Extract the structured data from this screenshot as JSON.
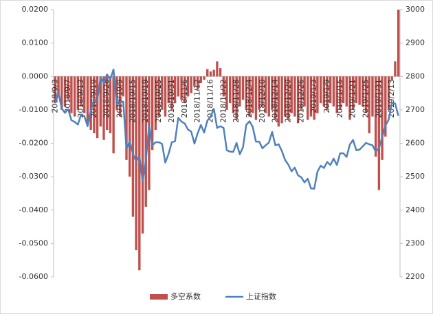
{
  "chart_data": {
    "type": "bar",
    "categories": [
      "2018/9/3",
      null,
      null,
      null,
      "2018/9/7",
      null,
      null,
      null,
      "2018/9/13",
      null,
      null,
      null,
      "2018/9/19",
      null,
      null,
      null,
      "2018/9/26",
      null,
      null,
      null,
      "2018/10/9",
      null,
      null,
      null,
      "2018/10/15",
      null,
      null,
      null,
      "2018/10/19",
      null,
      null,
      null,
      "2018/10/25",
      null,
      null,
      null,
      "2018/10/31",
      null,
      null,
      null,
      "2018/11/6",
      null,
      null,
      null,
      "2018/11/12",
      null,
      null,
      null,
      "2018/11/16",
      null,
      null,
      null,
      "2018/11/22",
      null,
      null,
      null,
      "2018/11/28",
      null,
      null,
      null,
      "2018/12/4",
      null,
      null,
      null,
      "2018/12/10",
      null,
      null,
      null,
      "2018/12/14",
      null,
      null,
      null,
      "2018/12/20",
      null,
      null,
      null,
      "2018/12/26",
      null,
      null,
      null,
      "2019/1/3",
      null,
      null,
      null,
      "2019/1/9",
      null,
      null,
      null,
      "2019/1/15",
      null,
      null,
      null,
      "2019/1/21",
      null,
      null,
      null,
      "2019/1/25",
      null,
      null,
      null,
      "2019/1/31",
      null,
      null,
      null,
      "2019/2/13",
      null,
      null
    ],
    "series": [
      {
        "name": "多空系数",
        "type": "bar",
        "color": "#c0504d",
        "values": [
          -0.008,
          -0.006,
          -0.01,
          -0.009,
          -0.007,
          -0.011,
          -0.012,
          -0.01,
          -0.009,
          -0.011,
          -0.014,
          -0.016,
          -0.017,
          -0.0185,
          -0.015,
          -0.019,
          -0.016,
          -0.017,
          -0.023,
          -0.01,
          -0.012,
          -0.006,
          -0.025,
          -0.03,
          -0.042,
          -0.052,
          -0.058,
          -0.047,
          -0.039,
          -0.034,
          -0.022,
          -0.016,
          -0.012,
          -0.01,
          -0.012,
          -0.008,
          -0.01,
          -0.008,
          -0.006,
          -0.007,
          -0.008,
          -0.006,
          -0.005,
          -0.003,
          -0.004,
          -0.002,
          -0.001,
          0.0022,
          0.0015,
          0.002,
          0.0045,
          0.0025,
          -0.006,
          -0.01,
          -0.008,
          -0.011,
          -0.013,
          -0.009,
          -0.007,
          -0.01,
          -0.012,
          -0.011,
          -0.013,
          -0.01,
          -0.009,
          -0.011,
          -0.012,
          -0.01,
          -0.013,
          -0.015,
          -0.014,
          -0.012,
          -0.013,
          -0.011,
          -0.012,
          -0.014,
          -0.01,
          -0.009,
          -0.013,
          -0.012,
          -0.013,
          -0.011,
          -0.008,
          -0.009,
          -0.01,
          -0.008,
          -0.009,
          -0.011,
          -0.01,
          -0.008,
          -0.009,
          -0.013,
          -0.01,
          -0.008,
          -0.0085,
          -0.009,
          -0.011,
          -0.017,
          -0.012,
          -0.024,
          -0.034,
          -0.025,
          -0.018,
          -0.01,
          -0.001,
          0.0045,
          0.02
        ]
      },
      {
        "name": "上证指数",
        "type": "line",
        "axis": "y2",
        "color": "#4f81bd",
        "values": [
          2720,
          2750,
          2704,
          2691,
          2702,
          2669,
          2664,
          2656,
          2686,
          2681,
          2651,
          2699,
          2730,
          2729,
          2797,
          2781,
          2806,
          2791,
          2821,
          2716,
          2721,
          2725,
          2583,
          2606,
          2568,
          2546,
          2561,
          2486,
          2550,
          2654,
          2594,
          2603,
          2603,
          2598,
          2542,
          2568,
          2603,
          2606,
          2676,
          2665,
          2659,
          2641,
          2635,
          2599,
          2630,
          2655,
          2632,
          2668,
          2679,
          2703,
          2646,
          2651,
          2646,
          2579,
          2575,
          2574,
          2601,
          2567,
          2588,
          2655,
          2666,
          2649,
          2605,
          2605,
          2585,
          2594,
          2602,
          2634,
          2594,
          2597,
          2577,
          2550,
          2536,
          2516,
          2527,
          2504,
          2498,
          2483,
          2494,
          2465,
          2464,
          2515,
          2533,
          2526,
          2544,
          2535,
          2554,
          2535,
          2570,
          2570,
          2559,
          2596,
          2610,
          2579,
          2581,
          2591,
          2601,
          2597,
          2594,
          2575,
          2585,
          2618,
          2653,
          2671,
          2721,
          2719,
          2682
        ]
      }
    ],
    "ylim": [
      -0.06,
      0.02
    ],
    "yticks": [
      {
        "value": 0.02,
        "label": "0.0200"
      },
      {
        "value": 0.01,
        "label": "0.0100"
      },
      {
        "value": 0,
        "label": "0.0000"
      },
      {
        "value": -0.01,
        "label": "-0.0100"
      },
      {
        "value": -0.02,
        "label": "-0.0200"
      },
      {
        "value": -0.03,
        "label": "-0.0300"
      },
      {
        "value": -0.04,
        "label": "-0.0400"
      },
      {
        "value": -0.05,
        "label": "-0.0500"
      },
      {
        "value": -0.06,
        "label": "-0.0600"
      }
    ],
    "y2lim": [
      2200,
      3000
    ],
    "y2ticks": [
      3000,
      2900,
      2800,
      2700,
      2600,
      2500,
      2400,
      2300,
      2200
    ],
    "legend": "bottom"
  }
}
